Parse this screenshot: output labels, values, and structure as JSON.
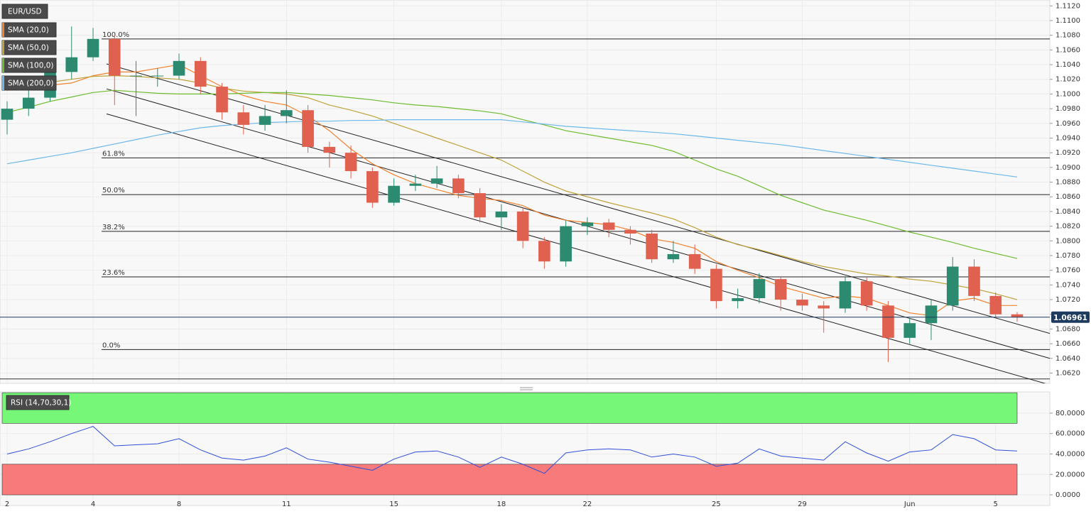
{
  "chart_data": [
    {
      "type": "candlestick",
      "symbol": "EUR/USD",
      "categories": [
        "2",
        null,
        null,
        null,
        "4",
        null,
        null,
        null,
        "8",
        null,
        null,
        null,
        null,
        "11",
        null,
        null,
        null,
        null,
        "15",
        null,
        null,
        null,
        null,
        "18",
        null,
        null,
        null,
        "22",
        null,
        null,
        null,
        null,
        null,
        "25",
        null,
        null,
        null,
        "29",
        null,
        null,
        null,
        null,
        "Jun",
        null,
        null,
        null,
        "5",
        null
      ],
      "open": [
        1.0965,
        1.098,
        1.0995,
        1.103,
        1.105,
        1.1075,
        1.1025,
        1.1025,
        1.1025,
        1.1045,
        1.101,
        1.0975,
        1.0958,
        1.097,
        1.0978,
        1.0928,
        1.092,
        1.0895,
        1.0852,
        1.0875,
        1.0878,
        1.0885,
        1.0865,
        1.0832,
        1.084,
        1.08,
        1.0772,
        1.082,
        1.0825,
        1.0815,
        1.081,
        1.0775,
        1.0782,
        1.0762,
        1.0718,
        1.0722,
        1.0748,
        1.072,
        1.0712,
        1.0708,
        1.0745,
        1.0712,
        1.0668,
        1.0688,
        1.0712,
        1.0765,
        1.0725,
        1.07
      ],
      "high": [
        1.099,
        1.101,
        1.104,
        1.1092,
        1.109,
        1.108,
        1.1045,
        1.1035,
        1.1055,
        1.105,
        1.1015,
        1.0985,
        1.0985,
        1.1005,
        1.0985,
        1.0935,
        1.093,
        1.09,
        1.0885,
        1.089,
        1.0902,
        1.089,
        1.0872,
        1.085,
        1.0845,
        1.0805,
        1.0828,
        1.0832,
        1.083,
        1.082,
        1.0815,
        1.08,
        1.0795,
        1.0768,
        1.0735,
        1.0756,
        1.0752,
        1.0728,
        1.0718,
        1.0752,
        1.075,
        1.0718,
        1.0695,
        1.072,
        1.0778,
        1.0775,
        1.073,
        1.0703
      ],
      "low": [
        1.0945,
        1.097,
        1.099,
        1.102,
        1.1045,
        1.0985,
        1.097,
        1.101,
        1.102,
        1.1,
        1.0965,
        1.0945,
        1.095,
        1.096,
        1.092,
        1.09,
        1.0885,
        1.0845,
        1.0848,
        1.0868,
        1.0872,
        1.0858,
        1.0825,
        1.0815,
        1.079,
        1.0762,
        1.0765,
        1.0808,
        1.0805,
        1.0795,
        1.077,
        1.077,
        1.0755,
        1.0708,
        1.0708,
        1.0715,
        1.0705,
        1.0705,
        1.0675,
        1.0702,
        1.0705,
        1.0635,
        1.066,
        1.0665,
        1.0705,
        1.0718,
        1.0695,
        1.069
      ],
      "close": [
        1.098,
        1.0995,
        1.103,
        1.105,
        1.1075,
        1.1025,
        1.1025,
        1.1025,
        1.1045,
        1.101,
        1.0975,
        1.0958,
        1.097,
        1.0978,
        1.0928,
        1.092,
        1.0895,
        1.0852,
        1.0875,
        1.0878,
        1.0885,
        1.0865,
        1.0832,
        1.084,
        1.08,
        1.0772,
        1.082,
        1.0825,
        1.0815,
        1.081,
        1.0775,
        1.0782,
        1.0762,
        1.0718,
        1.0722,
        1.0748,
        1.072,
        1.0712,
        1.0708,
        1.0745,
        1.0712,
        1.0668,
        1.0688,
        1.0712,
        1.0765,
        1.0725,
        1.07,
        1.06961
      ],
      "up_color": "#2b8a6f",
      "down_color": "#e0614f",
      "series": [
        {
          "name": "SMA (20,0)",
          "color": "#f0812e",
          "values": [
            1.1005,
            1.101,
            1.1012,
            1.1015,
            1.1025,
            1.103,
            1.103,
            1.1035,
            1.104,
            1.1025,
            1.101,
            1.0998,
            1.099,
            1.0985,
            1.097,
            1.095,
            1.0925,
            1.0905,
            1.089,
            1.0878,
            1.087,
            1.0862,
            1.0858,
            1.0855,
            1.0848,
            1.0835,
            1.0828,
            1.0825,
            1.0822,
            1.0815,
            1.0803,
            1.0798,
            1.079,
            1.0772,
            1.076,
            1.075,
            1.0738,
            1.073,
            1.0722,
            1.0725,
            1.0722,
            1.0712,
            1.0702,
            1.0698,
            1.0718,
            1.0722,
            1.0712,
            1.0712
          ]
        },
        {
          "name": "SMA (50,0)",
          "color": "#bfa23a",
          "values": [
            1.1008,
            1.1012,
            1.1016,
            1.102,
            1.1024,
            1.1025,
            1.1024,
            1.1022,
            1.102,
            1.1015,
            1.1008,
            1.1004,
            1.1002,
            1.1,
            1.0995,
            1.0985,
            1.0978,
            1.097,
            1.096,
            1.095,
            1.094,
            1.093,
            1.092,
            1.091,
            1.0895,
            1.088,
            1.0868,
            1.086,
            1.0852,
            1.0845,
            1.0838,
            1.083,
            1.0818,
            1.0805,
            1.0795,
            1.0788,
            1.078,
            1.0772,
            1.0765,
            1.076,
            1.0755,
            1.0752,
            1.0748,
            1.0745,
            1.074,
            1.0735,
            1.0728,
            1.072
          ]
        },
        {
          "name": "SMA (100,0)",
          "color": "#6dbb2e",
          "values": [
            1.0975,
            1.0982,
            1.099,
            1.0996,
            1.1002,
            1.1005,
            1.1003,
            1.1001,
            1.1,
            1.1,
            1.1,
            1.1001,
            1.1002,
            1.1002,
            1.1,
            1.0998,
            1.0995,
            1.0992,
            1.0988,
            1.0985,
            1.0983,
            1.098,
            1.0977,
            1.0973,
            1.0965,
            1.0958,
            1.095,
            1.0945,
            1.094,
            1.0935,
            1.093,
            1.0922,
            1.091,
            1.0898,
            1.0888,
            1.0875,
            1.0862,
            1.0852,
            1.0842,
            1.0835,
            1.0828,
            1.082,
            1.0812,
            1.0805,
            1.0798,
            1.079,
            1.0783,
            1.0776
          ]
        },
        {
          "name": "SMA (200,0)",
          "color": "#6cb8ea",
          "values": [
            1.0905,
            1.091,
            1.0915,
            1.092,
            1.0926,
            1.0932,
            1.0938,
            1.0944,
            1.0949,
            1.0954,
            1.0957,
            1.0959,
            1.0961,
            1.0962,
            1.0963,
            1.0963,
            1.0964,
            1.0964,
            1.0965,
            1.0965,
            1.0965,
            1.0965,
            1.0965,
            1.0965,
            1.0962,
            1.0959,
            1.0956,
            1.0954,
            1.0952,
            1.095,
            1.0948,
            1.0946,
            1.0943,
            1.094,
            1.0937,
            1.0934,
            1.0931,
            1.0927,
            1.0923,
            1.0919,
            1.0915,
            1.0911,
            1.0907,
            1.0903,
            1.0899,
            1.0895,
            1.0891,
            1.0887
          ]
        }
      ],
      "ylim": [
        1.0606,
        1.1128
      ],
      "yticks": [
        {
          "value": 1.112,
          "label": "1.1120"
        },
        {
          "value": 1.11,
          "label": "1.1100"
        },
        {
          "value": 1.108,
          "label": "1.1080"
        },
        {
          "value": 1.106,
          "label": "1.1060"
        },
        {
          "value": 1.104,
          "label": "1.1040"
        },
        {
          "value": 1.102,
          "label": "1.1020"
        },
        {
          "value": 1.1,
          "label": "1.1000"
        },
        {
          "value": 1.098,
          "label": "1.0980"
        },
        {
          "value": 1.096,
          "label": "1.0960"
        },
        {
          "value": 1.094,
          "label": "1.0940"
        },
        {
          "value": 1.092,
          "label": "1.0920"
        },
        {
          "value": 1.09,
          "label": "1.0900"
        },
        {
          "value": 1.088,
          "label": "1.0880"
        },
        {
          "value": 1.086,
          "label": "1.0860"
        },
        {
          "value": 1.084,
          "label": "1.0840"
        },
        {
          "value": 1.082,
          "label": "1.0820"
        },
        {
          "value": 1.08,
          "label": "1.0800"
        },
        {
          "value": 1.078,
          "label": "1.0780"
        },
        {
          "value": 1.076,
          "label": "1.0760"
        },
        {
          "value": 1.074,
          "label": "1.0740"
        },
        {
          "value": 1.072,
          "label": "1.0720"
        },
        {
          "value": 1.07,
          "label": "1.0700"
        },
        {
          "value": 1.068,
          "label": "1.0680"
        },
        {
          "value": 1.066,
          "label": "1.0660"
        },
        {
          "value": 1.064,
          "label": "1.0640"
        },
        {
          "value": 1.062,
          "label": "1.0620"
        }
      ],
      "grid": true,
      "fib_levels": [
        {
          "label": "100.0%",
          "price": 1.1075
        },
        {
          "label": "61.8%",
          "price": 1.0913
        },
        {
          "label": "50.0%",
          "price": 1.0863
        },
        {
          "label": "38.2%",
          "price": 1.0813
        },
        {
          "label": "23.6%",
          "price": 1.0751
        },
        {
          "label": "0.0%",
          "price": 1.0652
        }
      ],
      "channel_lines": [
        {
          "start": 1.1041,
          "end": 1.0674
        },
        {
          "start": 1.1007,
          "end": 1.064
        },
        {
          "start": 1.0973,
          "end": 1.0604
        }
      ],
      "support_line": 1.0612,
      "last_price": 1.06961,
      "last_price_color": "#1d3b5e"
    },
    {
      "type": "line",
      "series": [
        {
          "name": "RSI (14,70,30,1)",
          "color": "#2f4fd8",
          "values": [
            40,
            45,
            52,
            60,
            67,
            48,
            49,
            50,
            55,
            44,
            36,
            34,
            38,
            46,
            35,
            32,
            28,
            24,
            35,
            42,
            43,
            37,
            27,
            37,
            30,
            21,
            41,
            44,
            45,
            44,
            37,
            40,
            37,
            28,
            31,
            45,
            38,
            36,
            34,
            52,
            41,
            33,
            42,
            44,
            59,
            55,
            44,
            43
          ]
        }
      ],
      "ylim": [
        -10.4,
        100.8
      ],
      "yticks": [
        {
          "value": 80,
          "label": "80.0000"
        },
        {
          "value": 60,
          "label": "60.0000"
        },
        {
          "value": 40,
          "label": "40.0000"
        },
        {
          "value": 20,
          "label": "20.0000"
        },
        {
          "value": 0,
          "label": "0.0000"
        }
      ],
      "bands": [
        {
          "from": 70,
          "to": 100,
          "color": "#77f777"
        },
        {
          "from": 0,
          "to": 30,
          "color": "#f87a7a"
        }
      ]
    }
  ]
}
